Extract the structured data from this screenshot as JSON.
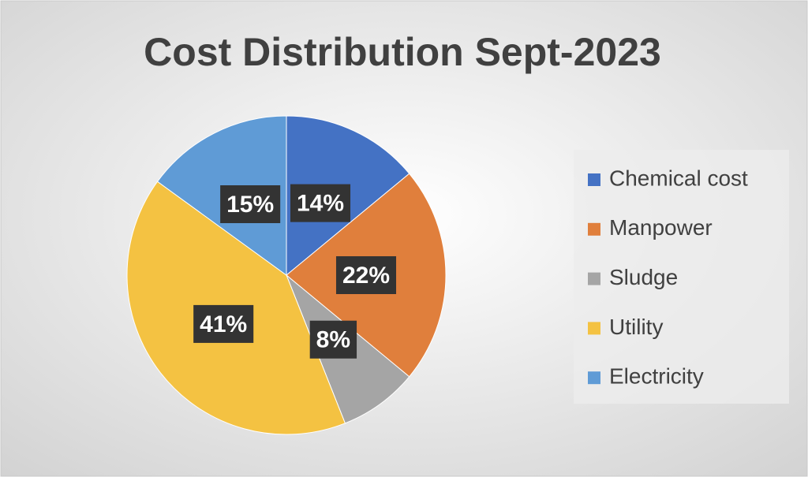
{
  "chart_data": {
    "type": "pie",
    "title": "Cost Distribution Sept-2023",
    "categories": [
      "Chemical cost",
      "Manpower",
      "Sludge",
      "Utility",
      "Electricity"
    ],
    "values": [
      14,
      22,
      8,
      41,
      15
    ],
    "value_labels": [
      "14%",
      "22%",
      "8%",
      "41%",
      "15%"
    ],
    "colors": [
      "#4472c4",
      "#e07f3c",
      "#a5a5a5",
      "#f4c242",
      "#5f9bd6"
    ],
    "legend": "right"
  }
}
